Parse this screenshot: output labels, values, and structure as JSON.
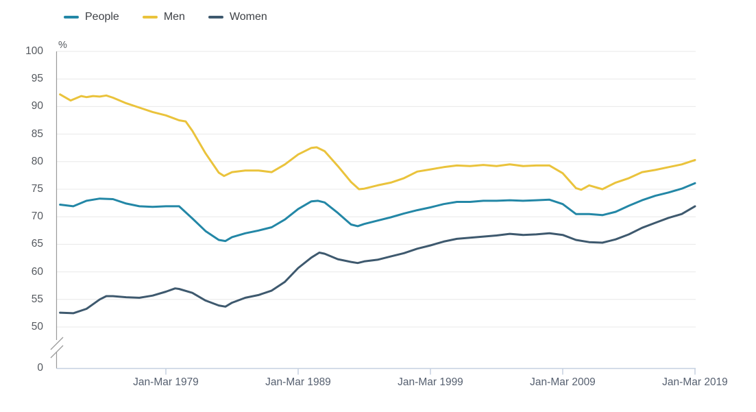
{
  "legend": {
    "items": [
      {
        "label": "People",
        "color": "#2387A6"
      },
      {
        "label": "Men",
        "color": "#EAC33C"
      },
      {
        "label": "Women",
        "color": "#3E596E"
      }
    ]
  },
  "axes": {
    "y": {
      "unit": "%",
      "ticks": [
        100,
        95,
        90,
        85,
        80,
        75,
        70,
        65,
        60,
        55,
        50
      ],
      "zero_label": "0",
      "broken_axis": true
    },
    "x": {
      "ticks": [
        {
          "label": "Jan-Mar 1979",
          "year": 1979
        },
        {
          "label": "Jan-Mar 1989",
          "year": 1989
        },
        {
          "label": "Jan-Mar 1999",
          "year": 1999
        },
        {
          "label": "Jan-Mar 2009",
          "year": 2009
        },
        {
          "label": "Jan-Mar 2019",
          "year": 2019
        }
      ]
    }
  },
  "colors": {
    "grid": "#e8e8e8",
    "y_axis": "#9a9a9a",
    "x_axis": "#c5d0e0",
    "tick": "#c5d0e0"
  },
  "chart_data": {
    "type": "line",
    "title": "",
    "xlabel": "",
    "ylabel": "%",
    "x_unit": "year (Jan-Mar quarter)",
    "xlim": [
      1971,
      2019.2
    ],
    "ylim_display": [
      50,
      100
    ],
    "grid": "horizontal",
    "legend_position": "top-left",
    "axis_break_between": [
      0,
      50
    ],
    "series": [
      {
        "name": "People",
        "color": "#2387A6",
        "points": [
          [
            1971,
            72.2
          ],
          [
            1972,
            71.9
          ],
          [
            1973,
            72.9
          ],
          [
            1974,
            73.3
          ],
          [
            1975,
            73.2
          ],
          [
            1976,
            72.4
          ],
          [
            1977,
            71.9
          ],
          [
            1978,
            71.8
          ],
          [
            1979,
            71.9
          ],
          [
            1980,
            71.9
          ],
          [
            1981,
            69.7
          ],
          [
            1982,
            67.4
          ],
          [
            1983,
            65.8
          ],
          [
            1983.5,
            65.6
          ],
          [
            1984,
            66.3
          ],
          [
            1985,
            67.0
          ],
          [
            1986,
            67.5
          ],
          [
            1987,
            68.1
          ],
          [
            1988,
            69.5
          ],
          [
            1989,
            71.4
          ],
          [
            1990,
            72.8
          ],
          [
            1990.5,
            72.9
          ],
          [
            1991,
            72.6
          ],
          [
            1992,
            70.7
          ],
          [
            1993,
            68.6
          ],
          [
            1993.5,
            68.3
          ],
          [
            1994,
            68.7
          ],
          [
            1995,
            69.3
          ],
          [
            1996,
            69.9
          ],
          [
            1997,
            70.6
          ],
          [
            1998,
            71.2
          ],
          [
            1999,
            71.7
          ],
          [
            2000,
            72.3
          ],
          [
            2001,
            72.7
          ],
          [
            2002,
            72.7
          ],
          [
            2003,
            72.9
          ],
          [
            2004,
            72.9
          ],
          [
            2005,
            73.0
          ],
          [
            2006,
            72.9
          ],
          [
            2007,
            73.0
          ],
          [
            2008,
            73.1
          ],
          [
            2009,
            72.3
          ],
          [
            2010,
            70.5
          ],
          [
            2011,
            70.5
          ],
          [
            2012,
            70.3
          ],
          [
            2013,
            70.9
          ],
          [
            2014,
            72.0
          ],
          [
            2015,
            73.0
          ],
          [
            2016,
            73.8
          ],
          [
            2017,
            74.4
          ],
          [
            2018,
            75.1
          ],
          [
            2019,
            76.1
          ]
        ]
      },
      {
        "name": "Men",
        "color": "#EAC33C",
        "points": [
          [
            1971,
            92.2
          ],
          [
            1971.8,
            91.1
          ],
          [
            1972.6,
            91.9
          ],
          [
            1973,
            91.7
          ],
          [
            1973.5,
            91.9
          ],
          [
            1974,
            91.8
          ],
          [
            1974.5,
            92.0
          ],
          [
            1975,
            91.6
          ],
          [
            1976,
            90.6
          ],
          [
            1977,
            89.8
          ],
          [
            1978,
            89.0
          ],
          [
            1979,
            88.4
          ],
          [
            1980,
            87.5
          ],
          [
            1980.5,
            87.3
          ],
          [
            1981,
            85.6
          ],
          [
            1982,
            81.5
          ],
          [
            1983,
            78.0
          ],
          [
            1983.4,
            77.4
          ],
          [
            1984,
            78.1
          ],
          [
            1985,
            78.4
          ],
          [
            1986,
            78.4
          ],
          [
            1987,
            78.1
          ],
          [
            1988,
            79.5
          ],
          [
            1989,
            81.3
          ],
          [
            1990,
            82.5
          ],
          [
            1990.4,
            82.6
          ],
          [
            1991,
            81.9
          ],
          [
            1992,
            79.2
          ],
          [
            1993,
            76.3
          ],
          [
            1993.6,
            75.0
          ],
          [
            1994,
            75.1
          ],
          [
            1995,
            75.7
          ],
          [
            1996,
            76.2
          ],
          [
            1997,
            77.0
          ],
          [
            1998,
            78.2
          ],
          [
            1999,
            78.6
          ],
          [
            2000,
            79.0
          ],
          [
            2001,
            79.3
          ],
          [
            2002,
            79.2
          ],
          [
            2003,
            79.4
          ],
          [
            2004,
            79.2
          ],
          [
            2005,
            79.5
          ],
          [
            2006,
            79.2
          ],
          [
            2007,
            79.3
          ],
          [
            2008,
            79.3
          ],
          [
            2009,
            77.9
          ],
          [
            2010,
            75.2
          ],
          [
            2010.4,
            74.9
          ],
          [
            2011,
            75.7
          ],
          [
            2012,
            75.0
          ],
          [
            2013,
            76.2
          ],
          [
            2014,
            77.0
          ],
          [
            2015,
            78.1
          ],
          [
            2016,
            78.5
          ],
          [
            2017,
            79.0
          ],
          [
            2018,
            79.5
          ],
          [
            2019,
            80.3
          ]
        ]
      },
      {
        "name": "Women",
        "color": "#3E596E",
        "points": [
          [
            1971,
            52.6
          ],
          [
            1972,
            52.5
          ],
          [
            1973,
            53.3
          ],
          [
            1974,
            55.0
          ],
          [
            1974.5,
            55.6
          ],
          [
            1975,
            55.6
          ],
          [
            1976,
            55.4
          ],
          [
            1977,
            55.3
          ],
          [
            1978,
            55.7
          ],
          [
            1979,
            56.4
          ],
          [
            1979.7,
            57.0
          ],
          [
            1980,
            56.9
          ],
          [
            1981,
            56.2
          ],
          [
            1982,
            54.8
          ],
          [
            1983,
            53.9
          ],
          [
            1983.5,
            53.7
          ],
          [
            1984,
            54.4
          ],
          [
            1985,
            55.3
          ],
          [
            1986,
            55.8
          ],
          [
            1987,
            56.6
          ],
          [
            1988,
            58.2
          ],
          [
            1989,
            60.7
          ],
          [
            1990,
            62.6
          ],
          [
            1990.6,
            63.5
          ],
          [
            1991,
            63.3
          ],
          [
            1992,
            62.3
          ],
          [
            1993,
            61.8
          ],
          [
            1993.5,
            61.6
          ],
          [
            1994,
            61.9
          ],
          [
            1995,
            62.2
          ],
          [
            1996,
            62.8
          ],
          [
            1997,
            63.4
          ],
          [
            1998,
            64.2
          ],
          [
            1999,
            64.8
          ],
          [
            2000,
            65.5
          ],
          [
            2001,
            66.0
          ],
          [
            2002,
            66.2
          ],
          [
            2003,
            66.4
          ],
          [
            2004,
            66.6
          ],
          [
            2005,
            66.9
          ],
          [
            2006,
            66.7
          ],
          [
            2007,
            66.8
          ],
          [
            2008,
            67.0
          ],
          [
            2009,
            66.7
          ],
          [
            2010,
            65.8
          ],
          [
            2011,
            65.4
          ],
          [
            2012,
            65.3
          ],
          [
            2013,
            65.9
          ],
          [
            2014,
            66.8
          ],
          [
            2015,
            68.0
          ],
          [
            2016,
            68.9
          ],
          [
            2017,
            69.8
          ],
          [
            2018,
            70.5
          ],
          [
            2019,
            71.9
          ]
        ]
      }
    ]
  }
}
